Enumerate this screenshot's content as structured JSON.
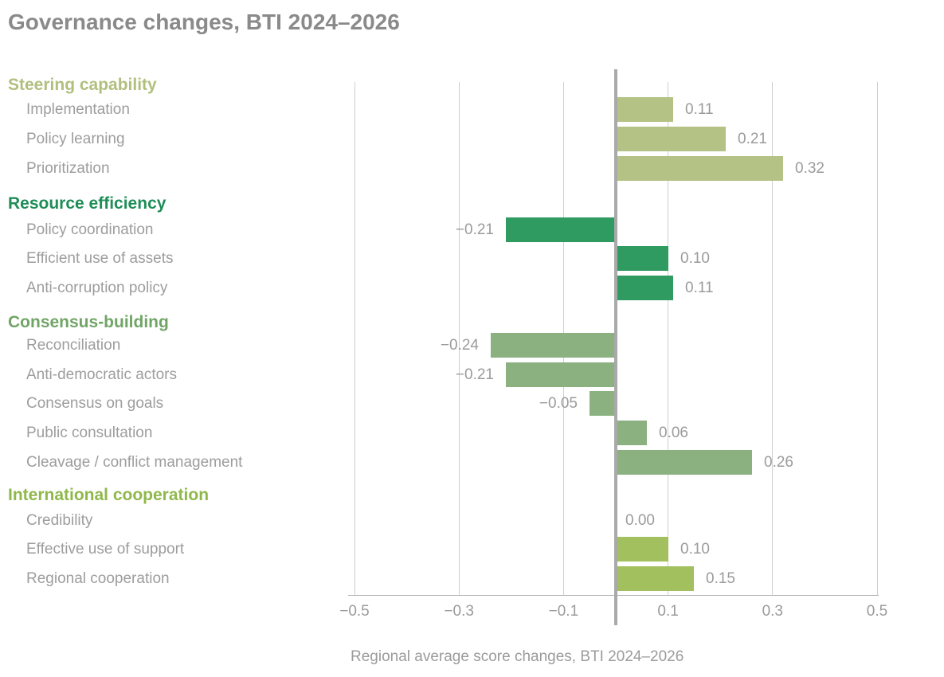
{
  "title": "Governance changes, BTI 2024–2026",
  "chart_data": {
    "type": "bar",
    "orientation": "horizontal",
    "title": "Governance changes, BTI 2024–2026",
    "xlabel": "Regional average score changes, BTI 2024–2026",
    "xlim": [
      -0.5,
      0.5
    ],
    "grid": "vertical",
    "zero_line": true,
    "x_ticks": [
      {
        "label": "−0.5",
        "value": -0.5
      },
      {
        "label": "−0.3",
        "value": -0.3
      },
      {
        "label": "−0.1",
        "value": -0.1
      },
      {
        "label": "0.1",
        "value": 0.1
      },
      {
        "label": "0.3",
        "value": 0.3
      },
      {
        "label": "0.5",
        "value": 0.5
      }
    ],
    "groups": [
      {
        "name": "Steering capability",
        "header_color": "#b1bf7e",
        "bar_color": "#b4c285",
        "items": [
          {
            "label": "Implementation",
            "value": 0.11,
            "display": "0.11"
          },
          {
            "label": "Policy learning",
            "value": 0.21,
            "display": "0.21"
          },
          {
            "label": "Prioritization",
            "value": 0.32,
            "display": "0.32"
          }
        ]
      },
      {
        "name": "Resource efficiency",
        "header_color": "#1f8d58",
        "bar_color": "#2f9b60",
        "items": [
          {
            "label": "Policy coordination",
            "value": -0.21,
            "display": "−0.21"
          },
          {
            "label": "Efficient use of assets",
            "value": 0.1,
            "display": "0.10"
          },
          {
            "label": "Anti-corruption policy",
            "value": 0.11,
            "display": "0.11"
          }
        ]
      },
      {
        "name": "Consensus-building",
        "header_color": "#71a566",
        "bar_color": "#8bb181",
        "items": [
          {
            "label": "Reconciliation",
            "value": -0.24,
            "display": "−0.24"
          },
          {
            "label": "Anti-democratic actors",
            "value": -0.21,
            "display": "−0.21"
          },
          {
            "label": "Consensus on goals",
            "value": -0.05,
            "display": "−0.05"
          },
          {
            "label": "Public consultation",
            "value": 0.06,
            "display": "0.06"
          },
          {
            "label": "Cleavage / conflict management",
            "value": 0.26,
            "display": "0.26"
          }
        ]
      },
      {
        "name": "International cooperation",
        "header_color": "#8fb84a",
        "bar_color": "#a3c05f",
        "items": [
          {
            "label": "Credibility",
            "value": 0.0,
            "display": "0.00"
          },
          {
            "label": "Effective use of support",
            "value": 0.1,
            "display": "0.10"
          },
          {
            "label": "Regional cooperation",
            "value": 0.15,
            "display": "0.15"
          }
        ]
      }
    ]
  },
  "colors": {
    "title_text": "#8a8a8a",
    "item_label_text": "#9d9d9d",
    "value_label_text": "#9b9b9b",
    "tick_label_text": "#9b9b9b",
    "gridline": "#cfcfcf",
    "zero_line": "#a9a9a9",
    "axis_line": "#b2b2b2",
    "background": "#ffffff"
  }
}
